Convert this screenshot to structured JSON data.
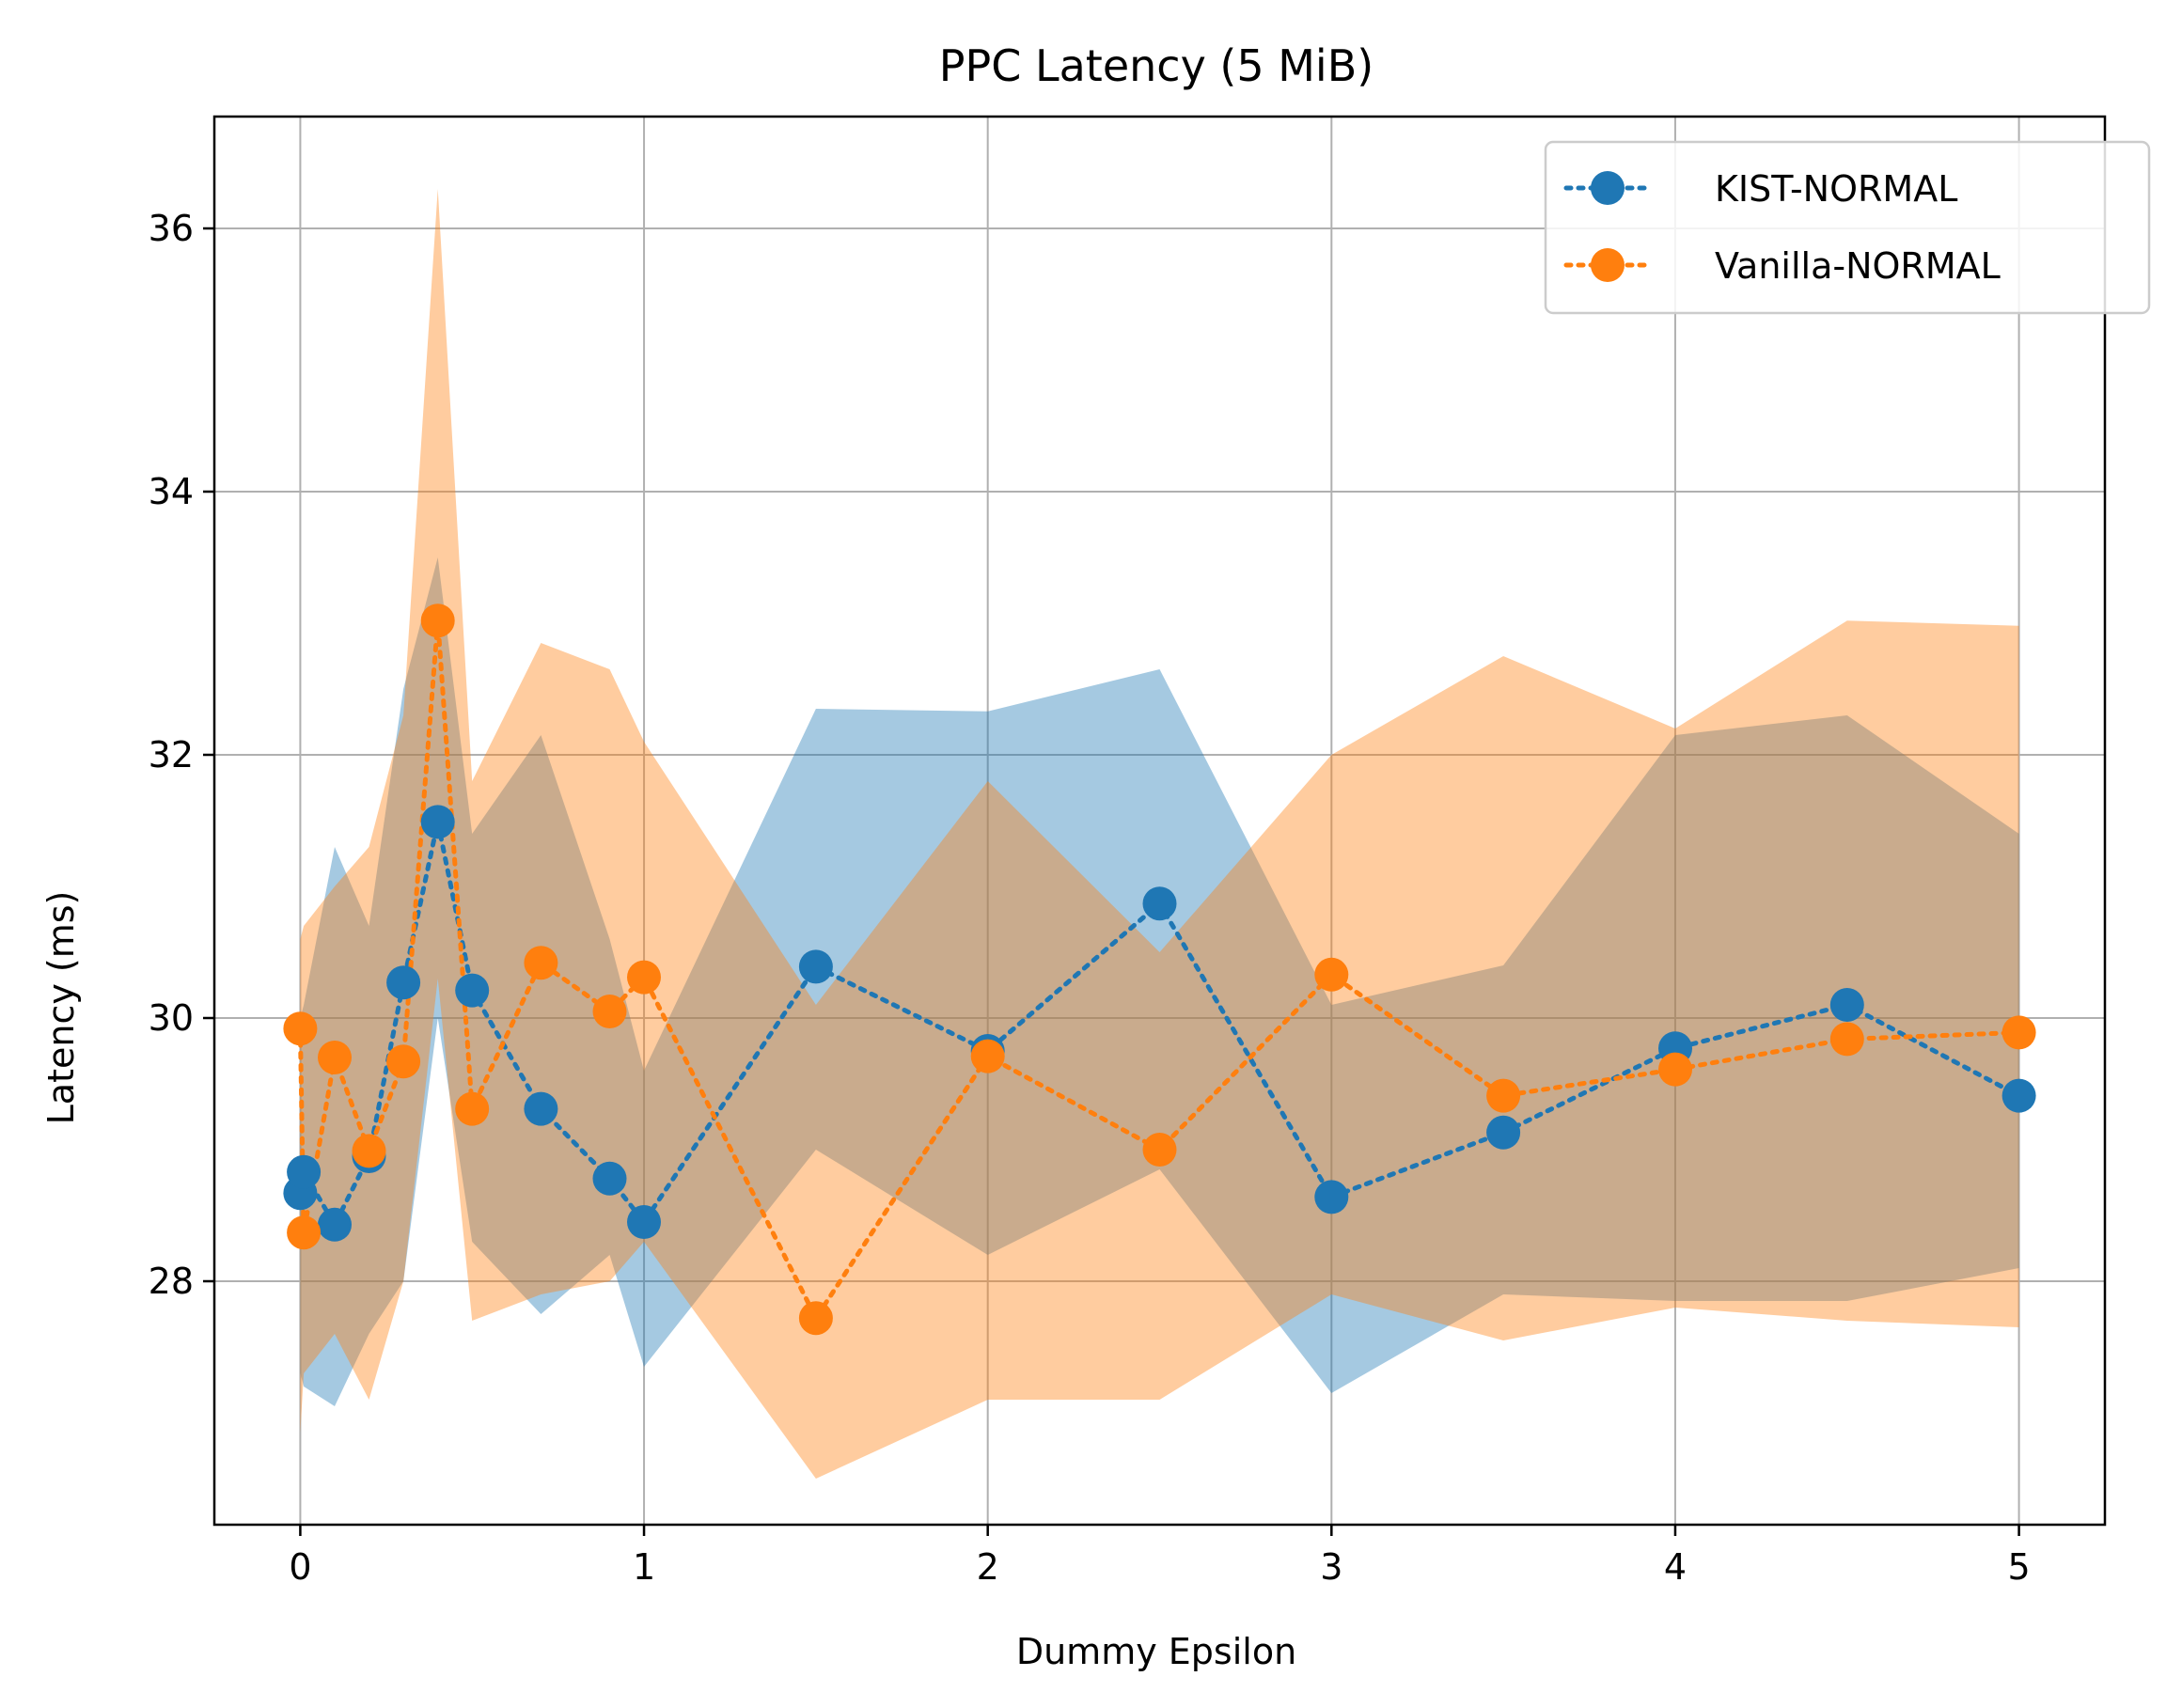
{
  "chart_data": {
    "type": "line",
    "title": "PPC Latency (5 MiB)",
    "xlabel": "Dummy Epsilon",
    "ylabel": "Latency (ms)",
    "xlim": [
      -0.25,
      5.25
    ],
    "ylim": [
      26.15,
      36.85
    ],
    "xticks": [
      0,
      1,
      2,
      3,
      4,
      5
    ],
    "yticks": [
      28,
      30,
      32,
      34,
      36
    ],
    "grid": true,
    "legend_position": "top-right",
    "series": [
      {
        "name": "KIST-NORMAL",
        "color": "#1f77b4",
        "band_color": "#a6c9e0",
        "x": [
          0.0,
          0.01,
          0.1,
          0.2,
          0.3,
          0.4,
          0.5,
          0.7,
          0.9,
          1.0,
          1.5,
          2.0,
          2.5,
          3.0,
          3.5,
          4.0,
          4.5,
          5.0
        ],
        "y": [
          28.67,
          28.83,
          28.43,
          28.95,
          30.27,
          31.49,
          30.21,
          29.31,
          28.78,
          28.45,
          30.39,
          29.75,
          30.87,
          28.64,
          29.13,
          29.77,
          30.1,
          29.41
        ],
        "lower": [
          27.3,
          27.2,
          27.05,
          27.6,
          28.0,
          30.0,
          28.3,
          27.75,
          28.2,
          27.35,
          29.0,
          28.2,
          28.85,
          27.15,
          27.9,
          27.85,
          27.85,
          28.1
        ],
        "upper": [
          30.0,
          30.1,
          31.3,
          30.7,
          32.5,
          33.5,
          31.4,
          32.15,
          30.6,
          29.6,
          32.35,
          32.33,
          32.65,
          30.1,
          30.4,
          32.15,
          32.3,
          31.4
        ]
      },
      {
        "name": "Vanilla-NORMAL",
        "color": "#ff7f0e",
        "band_color": "#fec999",
        "x": [
          0.0,
          0.01,
          0.1,
          0.2,
          0.3,
          0.4,
          0.5,
          0.7,
          0.9,
          1.0,
          1.5,
          2.0,
          2.5,
          3.0,
          3.5,
          4.0,
          4.5,
          5.0
        ],
        "y": [
          29.92,
          28.37,
          29.7,
          28.99,
          29.67,
          33.02,
          29.31,
          30.42,
          30.05,
          30.31,
          27.72,
          29.71,
          29.0,
          30.33,
          29.41,
          29.61,
          29.84,
          29.89
        ],
        "lower": [
          26.85,
          27.3,
          27.6,
          27.1,
          28.0,
          30.3,
          27.7,
          27.9,
          28.0,
          28.3,
          26.5,
          27.1,
          27.1,
          27.9,
          27.55,
          27.8,
          27.7,
          27.65
        ],
        "upper": [
          30.6,
          30.7,
          31.0,
          31.3,
          32.3,
          36.3,
          31.8,
          32.85,
          32.65,
          32.1,
          30.1,
          31.8,
          30.5,
          32.0,
          32.75,
          32.2,
          33.02,
          32.98
        ]
      }
    ]
  }
}
